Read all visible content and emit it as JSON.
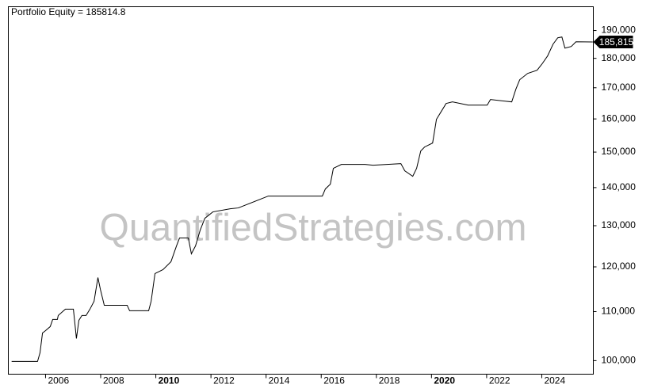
{
  "chart_data": {
    "type": "line",
    "title": "Portfolio Equity = 185814.8",
    "watermark": "QuantifiedStrategies.com",
    "last_value_label": "185,815",
    "log_scale": true,
    "grid": false,
    "series": [
      {
        "name": "Portfolio Equity",
        "color": "#000000",
        "x": [
          2004.77,
          2005.71,
          2005.8,
          2005.89,
          2005.97,
          2006.17,
          2006.26,
          2006.43,
          2006.46,
          2006.72,
          2007.01,
          2007.07,
          2007.12,
          2007.21,
          2007.32,
          2007.47,
          2007.61,
          2007.76,
          2007.9,
          2007.99,
          2008.13,
          2008.96,
          2009.05,
          2009.74,
          2009.83,
          2009.97,
          2010.26,
          2010.55,
          2010.75,
          2010.86,
          2011.18,
          2011.29,
          2011.44,
          2011.61,
          2011.78,
          2012.07,
          2012.7,
          2012.99,
          2014.08,
          2016.04,
          2016.15,
          2016.33,
          2016.44,
          2016.73,
          2017.59,
          2017.88,
          2018.89,
          2019.03,
          2019.32,
          2019.46,
          2019.61,
          2019.75,
          2020.04,
          2020.18,
          2020.32,
          2020.53,
          2020.76,
          2021.33,
          2022.02,
          2022.14,
          2022.91,
          2023.06,
          2023.2,
          2023.49,
          2023.83,
          2024.01,
          2024.21,
          2024.41,
          2024.58,
          2024.73,
          2024.84,
          2025.07,
          2025.24,
          2025.85
        ],
        "values": [
          99850,
          99850,
          101550,
          105530,
          105860,
          106840,
          108330,
          108330,
          109170,
          110520,
          110520,
          107170,
          104400,
          108160,
          109170,
          109170,
          110520,
          112230,
          117530,
          114850,
          111370,
          111370,
          110180,
          110180,
          112230,
          118440,
          119360,
          121210,
          124990,
          126930,
          126930,
          123080,
          124990,
          128890,
          131900,
          133540,
          134360,
          134570,
          137710,
          137710,
          139630,
          140930,
          145330,
          146450,
          146450,
          146230,
          146680,
          144660,
          143110,
          145330,
          150340,
          151500,
          152670,
          159880,
          161850,
          164870,
          165380,
          164360,
          164360,
          166150,
          165380,
          169510,
          172670,
          174810,
          175890,
          178050,
          180820,
          185040,
          187330,
          187620,
          183620,
          184190,
          185890,
          185814.8
        ]
      }
    ],
    "xlim": [
      2004.65,
      2025.87
    ],
    "xticks": [
      2006,
      2008,
      2010,
      2012,
      2014,
      2016,
      2018,
      2020,
      2022,
      2024
    ],
    "ylim": [
      97400,
      199000
    ],
    "yticks": [
      {
        "value": 100000,
        "label": "100,000"
      },
      {
        "value": 110000,
        "label": "110,000"
      },
      {
        "value": 120000,
        "label": "120,000"
      },
      {
        "value": 130000,
        "label": "130,000"
      },
      {
        "value": 140000,
        "label": "140,000"
      },
      {
        "value": 150000,
        "label": "150,000"
      },
      {
        "value": 160000,
        "label": "160,000"
      },
      {
        "value": 170000,
        "label": "170,000"
      },
      {
        "value": 180000,
        "label": "180,000"
      },
      {
        "value": 190000,
        "label": "190,000"
      }
    ]
  }
}
